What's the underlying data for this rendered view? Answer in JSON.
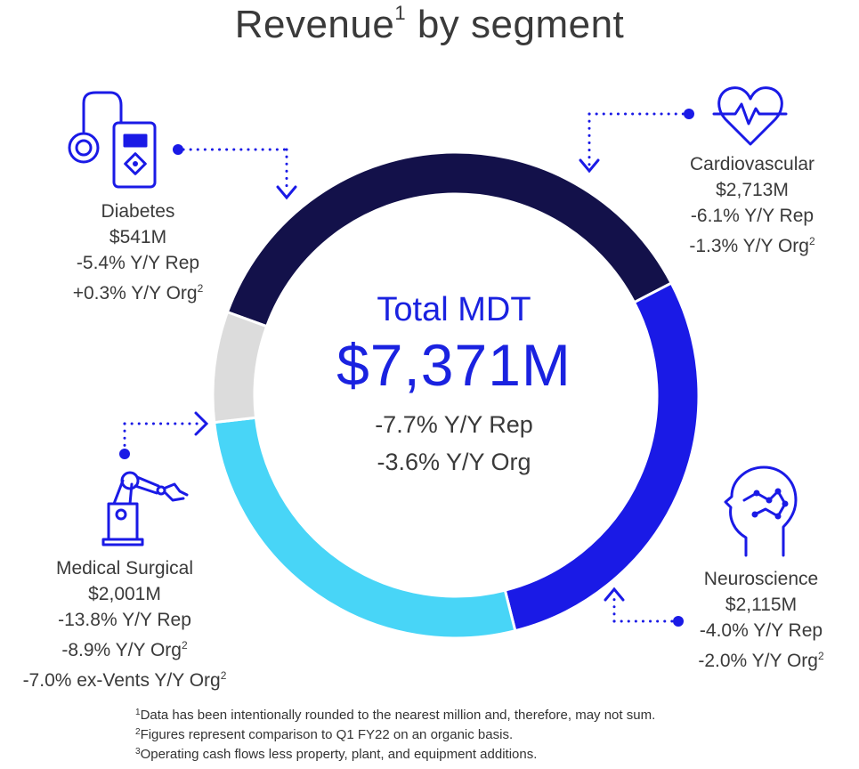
{
  "title": {
    "text": "Revenue",
    "sup": "1",
    "suffix": " by segment"
  },
  "center": {
    "label": "Total MDT",
    "total": "$7,371M",
    "rep": "-7.7% Y/Y Rep",
    "org": "-3.6% Y/Y Org"
  },
  "segments": {
    "cardiovascular": {
      "name": "Cardiovascular",
      "value": "$2,713M",
      "rep": "-6.1% Y/Y Rep",
      "org": "-1.3% Y/Y Org",
      "org_sup": "2"
    },
    "neuroscience": {
      "name": "Neuroscience",
      "value": "$2,115M",
      "rep": "-4.0% Y/Y Rep",
      "org": "-2.0% Y/Y Org",
      "org_sup": "2"
    },
    "medical_surgical": {
      "name": "Medical Surgical",
      "value": "$2,001M",
      "rep": "-13.8% Y/Y Rep",
      "org": "-8.9% Y/Y Org",
      "org_sup": "2",
      "exvents": "-7.0% ex-Vents Y/Y Org",
      "exvents_sup": "2"
    },
    "diabetes": {
      "name": "Diabetes",
      "value": "$541M",
      "rep": "-5.4% Y/Y Rep",
      "org": "+0.3% Y/Y Org",
      "org_sup": "2"
    }
  },
  "footnotes": [
    {
      "num": "1",
      "text": "Data has been intentionally rounded to the nearest million and, therefore, may not sum."
    },
    {
      "num": "2",
      "text": "Figures represent comparison to Q1 FY22 on an organic basis."
    },
    {
      "num": "3",
      "text": "Operating cash flows less property, plant, and equipment additions."
    }
  ],
  "chart_data": {
    "type": "pie",
    "categories": [
      "Cardiovascular",
      "Neuroscience",
      "Medical Surgical",
      "Diabetes"
    ],
    "values": [
      2713,
      2115,
      2001,
      541
    ],
    "total": 7371,
    "colors": [
      "#13114a",
      "#1a1ae6",
      "#48d5f7",
      "#dcdcdc"
    ],
    "icons": [
      "heart-pulse-icon",
      "brain-head-icon",
      "robotic-arm-icon",
      "insulin-pump-icon"
    ]
  }
}
